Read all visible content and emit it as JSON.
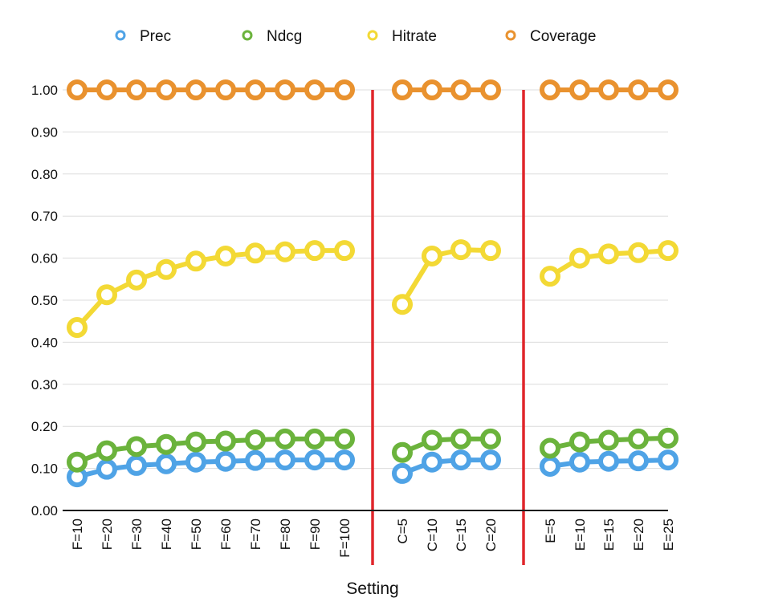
{
  "chart_data": {
    "type": "line",
    "xlabel": "Setting",
    "ylabel": "",
    "ylim": [
      0,
      1
    ],
    "yticks": [
      "0.00",
      "0.10",
      "0.20",
      "0.30",
      "0.40",
      "0.50",
      "0.60",
      "0.70",
      "0.80",
      "0.90",
      "1.00"
    ],
    "grid": true,
    "legend_position": "top",
    "groups": [
      {
        "categories": [
          "F=10",
          "F=20",
          "F=30",
          "F=40",
          "F=50",
          "F=60",
          "F=70",
          "F=80",
          "F=90",
          "F=100"
        ],
        "series": [
          {
            "name": "Prec",
            "values": [
              0.08,
              0.098,
              0.107,
              0.111,
              0.115,
              0.117,
              0.119,
              0.12,
              0.12,
              0.12
            ]
          },
          {
            "name": "Ndcg",
            "values": [
              0.115,
              0.142,
              0.152,
              0.157,
              0.163,
              0.165,
              0.168,
              0.17,
              0.17,
              0.17
            ]
          },
          {
            "name": "Hitrate",
            "values": [
              0.435,
              0.513,
              0.548,
              0.573,
              0.593,
              0.605,
              0.612,
              0.615,
              0.618,
              0.618
            ]
          },
          {
            "name": "Coverage",
            "values": [
              1.0,
              1.0,
              1.0,
              1.0,
              1.0,
              1.0,
              1.0,
              1.0,
              1.0,
              1.0
            ]
          }
        ]
      },
      {
        "categories": [
          "C=5",
          "C=10",
          "C=15",
          "C=20"
        ],
        "series": [
          {
            "name": "Prec",
            "values": [
              0.088,
              0.115,
              0.12,
              0.12
            ]
          },
          {
            "name": "Ndcg",
            "values": [
              0.138,
              0.167,
              0.17,
              0.17
            ]
          },
          {
            "name": "Hitrate",
            "values": [
              0.49,
              0.605,
              0.62,
              0.618
            ]
          },
          {
            "name": "Coverage",
            "values": [
              1.0,
              1.0,
              1.0,
              1.0
            ]
          }
        ]
      },
      {
        "categories": [
          "E=5",
          "E=10",
          "E=15",
          "E=20",
          "E=25"
        ],
        "series": [
          {
            "name": "Prec",
            "values": [
              0.105,
              0.115,
              0.117,
              0.118,
              0.12
            ]
          },
          {
            "name": "Ndcg",
            "values": [
              0.148,
              0.163,
              0.167,
              0.17,
              0.172
            ]
          },
          {
            "name": "Hitrate",
            "values": [
              0.557,
              0.6,
              0.61,
              0.613,
              0.618
            ]
          },
          {
            "name": "Coverage",
            "values": [
              1.0,
              1.0,
              1.0,
              1.0,
              1.0
            ]
          }
        ]
      }
    ]
  },
  "legend": [
    {
      "name": "Prec",
      "color": "#4fa3e6"
    },
    {
      "name": "Ndcg",
      "color": "#6bb33c"
    },
    {
      "name": "Hitrate",
      "color": "#f3d935"
    },
    {
      "name": "Coverage",
      "color": "#e9922f"
    }
  ],
  "colors": {
    "separator": "#e0262b",
    "grid": "#dcdcdc",
    "axis": "#1a1a1a"
  }
}
